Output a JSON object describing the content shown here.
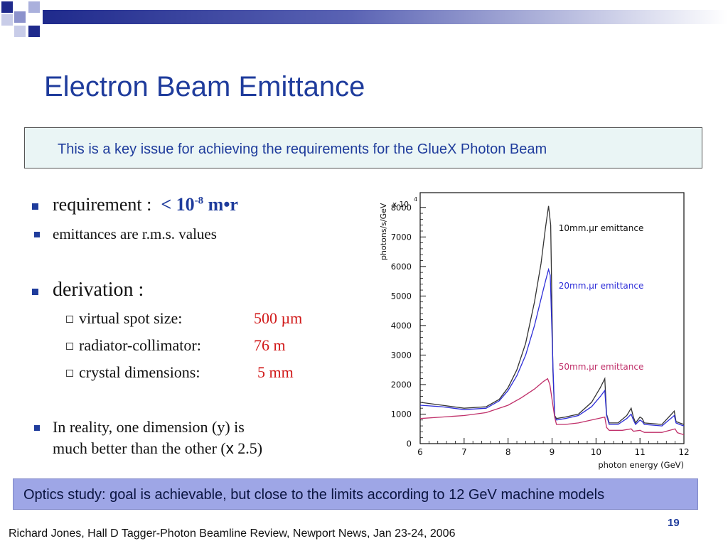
{
  "title": "Electron Beam Emittance",
  "key_issue": "This is a key issue for achieving the requirements for the GlueX Photon Beam",
  "bullets": {
    "requirement_label": "requirement :",
    "requirement_value_prefix": "< 10",
    "requirement_value_exp": "-8",
    "requirement_value_suffix": " m•r",
    "emittances": "emittances are r.m.s. values",
    "derivation": "derivation :",
    "sub": [
      {
        "label": "virtual spot size:",
        "value": "500 µm"
      },
      {
        "label": "radiator-collimator:",
        "value": "76 m"
      },
      {
        "label": "crystal dimensions:",
        "value": "5 mm"
      }
    ],
    "reality_line1": "In reality, one dimension (y) is",
    "reality_line2_prefix": "much better than the other (",
    "reality_line2_x": "x",
    "reality_line2_suffix": " 2.5)"
  },
  "optics_note": "Optics study: goal is achievable, but close to the limits according to 12 GeV  machine models",
  "page_number": "19",
  "footer": "Richard Jones, Hall D Tagger-Photon Beamline Review, Newport News, Jan 23-24, 2006",
  "colors": {
    "title_blue": "#1f3c9c",
    "value_red": "#d11a1a",
    "optics_bg": "#9ea6e6"
  },
  "chart_data": {
    "type": "line",
    "xlabel": "photon energy (GeV)",
    "ylabel": "photons/s/GeV",
    "y_multiplier": "x 10",
    "y_multiplier_exp": "4",
    "xlim": [
      6,
      12
    ],
    "ylim": [
      0,
      8500
    ],
    "x_ticks": [
      "6",
      "7",
      "8",
      "9",
      "10",
      "11",
      "12"
    ],
    "y_ticks": [
      "0",
      "1000",
      "2000",
      "3000",
      "4000",
      "5000",
      "6000",
      "7000",
      "8000"
    ],
    "series": [
      {
        "name": "10mm.μr emittance",
        "color": "#333333",
        "x": [
          6.0,
          6.5,
          7.0,
          7.5,
          7.8,
          8.0,
          8.2,
          8.4,
          8.6,
          8.75,
          8.85,
          8.92,
          8.97,
          9.02,
          9.06,
          9.1,
          9.3,
          9.6,
          9.9,
          10.1,
          10.2,
          10.24,
          10.3,
          10.5,
          10.7,
          10.8,
          10.85,
          10.9,
          11.0,
          11.05,
          11.1,
          11.5,
          11.78,
          11.82,
          11.9,
          12.0
        ],
        "y": [
          1400,
          1300,
          1200,
          1250,
          1500,
          1900,
          2500,
          3400,
          4800,
          6100,
          7300,
          8050,
          7400,
          2500,
          950,
          850,
          900,
          1000,
          1400,
          1900,
          2200,
          1000,
          700,
          700,
          950,
          1200,
          900,
          700,
          900,
          850,
          700,
          650,
          1100,
          750,
          700,
          650
        ]
      },
      {
        "name": "20mm.μr emittance",
        "color": "#2e2ed8",
        "x": [
          6.0,
          6.5,
          7.0,
          7.5,
          7.8,
          8.0,
          8.2,
          8.4,
          8.6,
          8.75,
          8.85,
          8.92,
          8.96,
          9.02,
          9.06,
          9.1,
          9.3,
          9.6,
          9.9,
          10.1,
          10.2,
          10.24,
          10.3,
          10.5,
          10.7,
          10.8,
          10.85,
          10.9,
          11.0,
          11.05,
          11.1,
          11.5,
          11.78,
          11.82,
          11.9,
          12.0
        ],
        "y": [
          1300,
          1250,
          1150,
          1200,
          1450,
          1800,
          2300,
          3000,
          4000,
          4900,
          5500,
          5900,
          5700,
          2700,
          900,
          800,
          850,
          950,
          1250,
          1600,
          1800,
          950,
          650,
          650,
          850,
          1000,
          800,
          650,
          800,
          750,
          650,
          600,
          950,
          700,
          650,
          600
        ]
      },
      {
        "name": "50mm.μr emittance",
        "color": "#c0306a",
        "x": [
          6.0,
          6.5,
          7.0,
          7.5,
          8.0,
          8.3,
          8.6,
          8.8,
          8.9,
          8.95,
          9.0,
          9.06,
          9.1,
          9.3,
          9.6,
          9.9,
          10.2,
          10.24,
          10.3,
          10.6,
          10.8,
          10.85,
          11.0,
          11.1,
          11.5,
          11.8,
          11.85,
          12.0
        ],
        "y": [
          850,
          900,
          950,
          1050,
          1300,
          1550,
          1850,
          2100,
          2200,
          2000,
          1500,
          900,
          650,
          650,
          700,
          800,
          900,
          550,
          450,
          450,
          500,
          420,
          450,
          380,
          380,
          500,
          370,
          300
        ]
      }
    ]
  }
}
